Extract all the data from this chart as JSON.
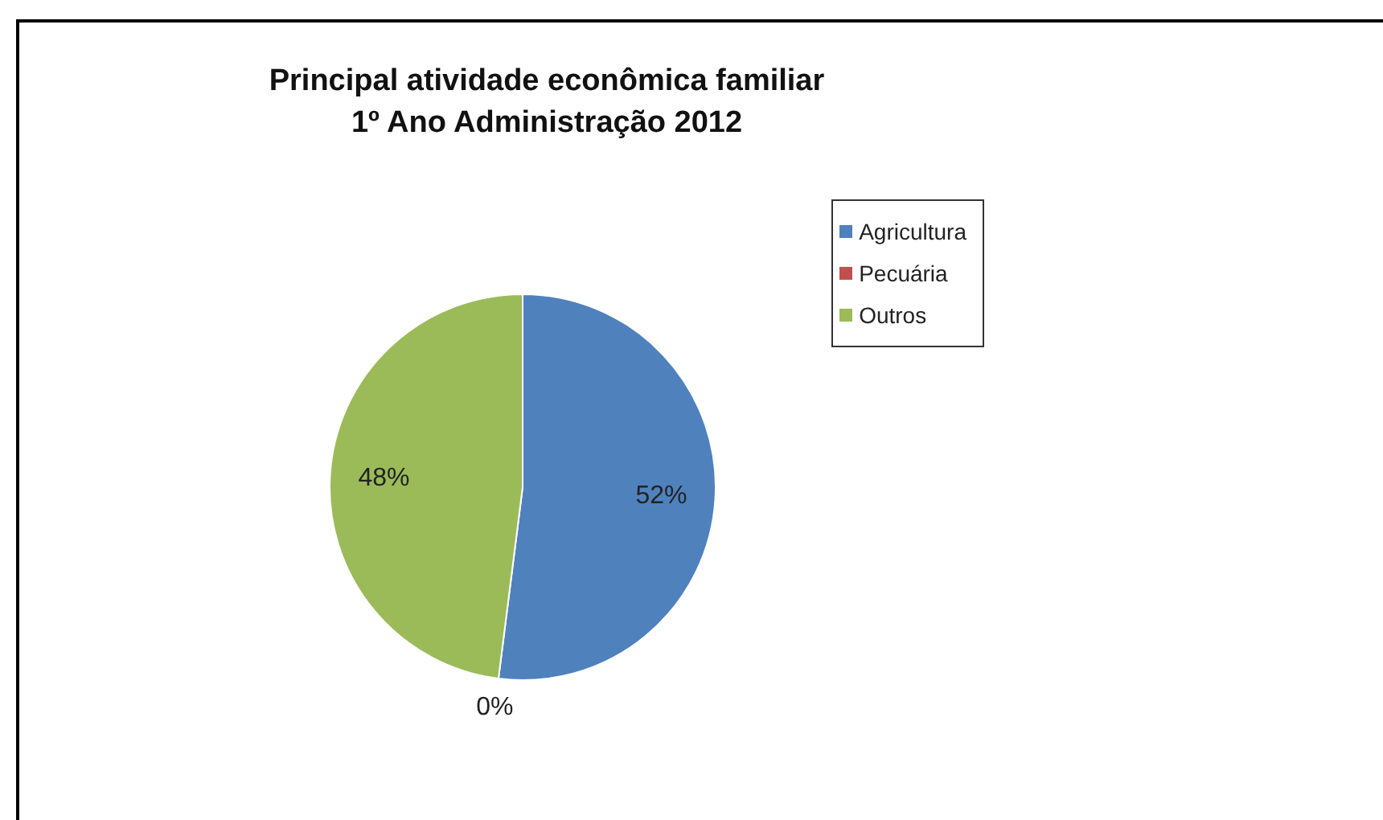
{
  "chart_data": {
    "type": "pie",
    "title": "Principal atividade econômica familiar\n1º Ano Administração 2012",
    "categories": [
      "Agricultura",
      "Pecuária",
      "Outros"
    ],
    "values": [
      52,
      0,
      48
    ],
    "value_labels": [
      "52%",
      "0%",
      "48%"
    ],
    "colors": [
      "#4f81bd",
      "#c0504d",
      "#9bbb59"
    ],
    "legend": "right"
  }
}
